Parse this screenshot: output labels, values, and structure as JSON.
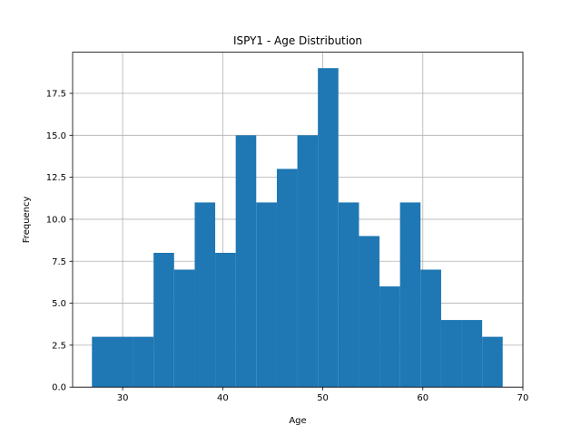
{
  "chart_data": {
    "type": "bar",
    "title": "ISPY1 - Age Distribution",
    "xlabel": "Age",
    "ylabel": "Frequency",
    "bar_color": "#1f77b4",
    "grid": true,
    "grid_color": "#b0b0b0",
    "xlim": [
      25,
      70
    ],
    "ylim": [
      0,
      19.95
    ],
    "x_ticks": [
      30,
      40,
      50,
      60,
      70
    ],
    "x_tick_labels": [
      "30",
      "40",
      "50",
      "60",
      "70"
    ],
    "y_ticks": [
      0,
      2.5,
      5,
      7.5,
      10,
      12.5,
      15,
      17.5
    ],
    "y_tick_labels": [
      "0.0",
      "2.5",
      "5.0",
      "7.5",
      "10.0",
      "12.5",
      "15.0",
      "17.5"
    ],
    "bins": [
      {
        "start": 26.93,
        "end": 28.99,
        "value": 3
      },
      {
        "start": 28.99,
        "end": 31.04,
        "value": 3
      },
      {
        "start": 31.04,
        "end": 33.09,
        "value": 3
      },
      {
        "start": 33.09,
        "end": 35.14,
        "value": 8
      },
      {
        "start": 35.14,
        "end": 37.2,
        "value": 7
      },
      {
        "start": 37.2,
        "end": 39.25,
        "value": 11
      },
      {
        "start": 39.25,
        "end": 41.3,
        "value": 8
      },
      {
        "start": 41.3,
        "end": 43.35,
        "value": 15
      },
      {
        "start": 43.35,
        "end": 45.41,
        "value": 11
      },
      {
        "start": 45.41,
        "end": 47.46,
        "value": 13
      },
      {
        "start": 47.46,
        "end": 49.51,
        "value": 15
      },
      {
        "start": 49.51,
        "end": 51.56,
        "value": 19
      },
      {
        "start": 51.56,
        "end": 53.62,
        "value": 11
      },
      {
        "start": 53.62,
        "end": 55.67,
        "value": 9
      },
      {
        "start": 55.67,
        "end": 57.72,
        "value": 6
      },
      {
        "start": 57.72,
        "end": 59.77,
        "value": 11
      },
      {
        "start": 59.77,
        "end": 61.83,
        "value": 7
      },
      {
        "start": 61.83,
        "end": 63.88,
        "value": 4
      },
      {
        "start": 63.88,
        "end": 65.93,
        "value": 4
      },
      {
        "start": 65.93,
        "end": 67.98,
        "value": 3
      }
    ]
  }
}
